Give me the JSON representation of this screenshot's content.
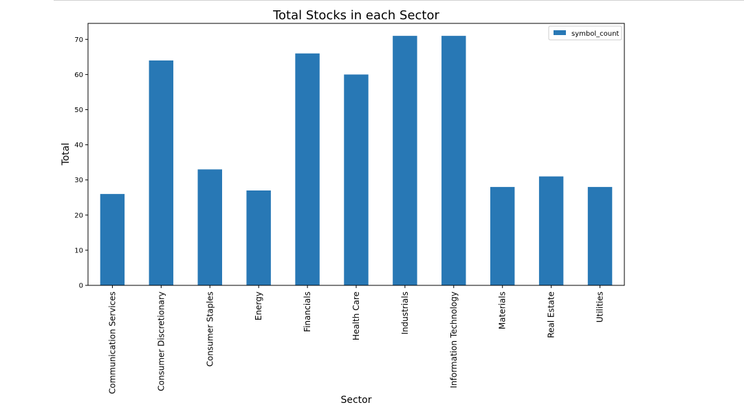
{
  "chart_data": {
    "type": "bar",
    "title": "Total Stocks in each Sector",
    "xlabel": "Sector",
    "ylabel": "Total",
    "categories": [
      "Communication Services",
      "Consumer Discretionary",
      "Consumer Staples",
      "Energy",
      "Financials",
      "Health Care",
      "Industrials",
      "Information Technology",
      "Materials",
      "Real Estate",
      "Utilities"
    ],
    "series": [
      {
        "name": "symbol_count",
        "values": [
          26,
          64,
          33,
          27,
          66,
          60,
          71,
          71,
          28,
          31,
          28
        ]
      }
    ],
    "ylim": [
      0,
      74.55
    ],
    "yticks": [
      0,
      10,
      20,
      30,
      40,
      50,
      60,
      70
    ],
    "grid": false,
    "legend_position": "top-right",
    "colors": {
      "bar": "#2878b5",
      "axis": "#000000"
    }
  }
}
